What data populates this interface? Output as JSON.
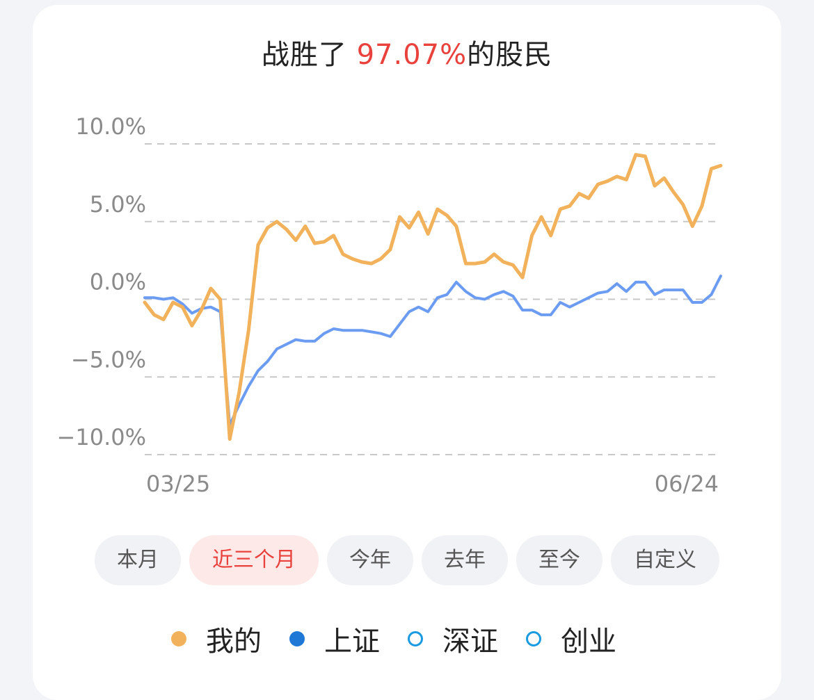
{
  "title": {
    "prefix": "战胜了 ",
    "percent": "97.07%",
    "suffix": "的股民"
  },
  "ranges": [
    {
      "label": "本月",
      "active": false
    },
    {
      "label": "近三个月",
      "active": true
    },
    {
      "label": "今年",
      "active": false
    },
    {
      "label": "去年",
      "active": false
    },
    {
      "label": "至今",
      "active": false
    },
    {
      "label": "自定义",
      "active": false
    }
  ],
  "legend": [
    {
      "label": "我的",
      "color": "#f2b25c",
      "style": "filled"
    },
    {
      "label": "上证",
      "color": "#1f78d6",
      "style": "filled"
    },
    {
      "label": "深证",
      "color": "#1a9ae0",
      "style": "hollow"
    },
    {
      "label": "创业",
      "color": "#1a9ae0",
      "style": "hollow"
    }
  ],
  "chart_data": {
    "type": "line",
    "y_ticks": [
      "10.0%",
      "5.0%",
      "0.0%",
      "−5.0%",
      "−10.0%"
    ],
    "y_tick_values": [
      10,
      5,
      0,
      -5,
      -10
    ],
    "ylim": [
      -10,
      10
    ],
    "x_tick_labels": [
      "03/25",
      "06/24"
    ],
    "grid": "dashed-horizontal",
    "series": [
      {
        "name": "我的",
        "color": "#f2b25c",
        "values": [
          -0.2,
          -1,
          -1.3,
          -0.2,
          -0.5,
          -1.7,
          -0.7,
          0.7,
          0,
          -9,
          -6,
          -2,
          3.5,
          4.6,
          5,
          4.5,
          3.8,
          4.7,
          3.6,
          3.7,
          4.1,
          2.9,
          2.6,
          2.4,
          2.3,
          2.6,
          3.2,
          5.3,
          4.6,
          5.6,
          4.2,
          5.8,
          5.4,
          4.7,
          2.3,
          2.3,
          2.4,
          2.9,
          2.4,
          2.2,
          1.4,
          4.1,
          5.3,
          4.1,
          5.8,
          6,
          6.8,
          6.5,
          7.4,
          7.6,
          7.9,
          7.7,
          9.3,
          9.2,
          7.3,
          7.8,
          6.9,
          6.1,
          4.7,
          6,
          8.4,
          8.6
        ]
      },
      {
        "name": "上证",
        "color": "#6b9cf2",
        "values": [
          0.1,
          0.1,
          0,
          0.1,
          -0.3,
          -0.9,
          -0.6,
          -0.5,
          -0.8,
          -8.1,
          -6.8,
          -5.6,
          -4.6,
          -4,
          -3.2,
          -2.9,
          -2.6,
          -2.7,
          -2.7,
          -2.2,
          -1.9,
          -2,
          -2,
          -2,
          -2.1,
          -2.2,
          -2.4,
          -1.6,
          -0.8,
          -0.5,
          -0.8,
          0.1,
          0.3,
          1.1,
          0.5,
          0.1,
          0,
          0.3,
          0.5,
          0.2,
          -0.7,
          -0.7,
          -1,
          -1,
          -0.2,
          -0.5,
          -0.2,
          0.1,
          0.4,
          0.5,
          1,
          0.5,
          1.1,
          1.1,
          0.3,
          0.6,
          0.6,
          0.6,
          -0.2,
          -0.2,
          0.3,
          1.5
        ]
      }
    ]
  }
}
